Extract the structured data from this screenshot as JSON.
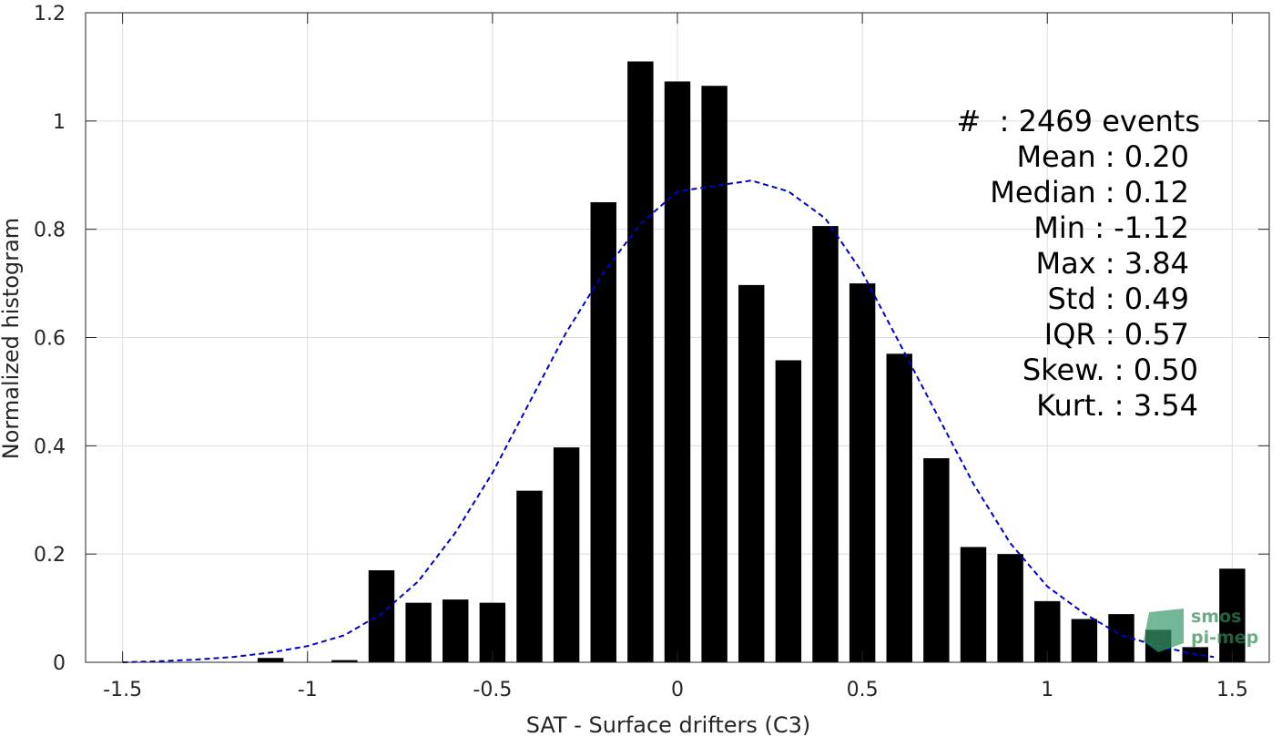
{
  "chart_data": {
    "type": "bar",
    "xlabel": "SAT - Surface drifters (C3)",
    "ylabel": "Normalized histogram",
    "xlim": [
      -1.6,
      1.6
    ],
    "ylim": [
      0,
      1.2
    ],
    "xticks": [
      -1.5,
      -1,
      -0.5,
      0,
      0.5,
      1,
      1.5
    ],
    "xtick_labels": [
      "-1.5",
      "-1",
      "-0.5",
      "0",
      "0.5",
      "1",
      "1.5"
    ],
    "yticks": [
      0,
      0.2,
      0.4,
      0.6,
      0.8,
      1,
      1.2
    ],
    "ytick_labels": [
      "0",
      "0.2",
      "0.4",
      "0.6",
      "0.8",
      "1",
      "1.2"
    ],
    "grid": true,
    "bar_width": 0.07,
    "x": [
      -1.1,
      -0.9,
      -0.8,
      -0.7,
      -0.6,
      -0.5,
      -0.4,
      -0.3,
      -0.2,
      -0.1,
      0.0,
      0.1,
      0.2,
      0.3,
      0.4,
      0.5,
      0.6,
      0.7,
      0.8,
      0.9,
      1.0,
      1.1,
      1.2,
      1.3,
      1.4,
      1.5
    ],
    "values": [
      0.008,
      0.004,
      0.17,
      0.11,
      0.116,
      0.11,
      0.317,
      0.397,
      0.85,
      1.11,
      1.073,
      1.065,
      0.697,
      0.558,
      0.806,
      0.7,
      0.57,
      0.377,
      0.213,
      0.2,
      0.113,
      0.08,
      0.089,
      0.06,
      0.028,
      0.173
    ],
    "bar_color": "#000000",
    "fit_curve": {
      "style": "dashed",
      "color": "#0000cc",
      "x": [
        -1.5,
        -1.4,
        -1.3,
        -1.2,
        -1.1,
        -1.0,
        -0.9,
        -0.8,
        -0.7,
        -0.6,
        -0.5,
        -0.4,
        -0.3,
        -0.2,
        -0.1,
        0.0,
        0.1,
        0.2,
        0.3,
        0.4,
        0.5,
        0.6,
        0.7,
        0.8,
        0.9,
        1.0,
        1.1,
        1.2,
        1.3,
        1.4,
        1.45
      ],
      "y": [
        0.0,
        0.002,
        0.005,
        0.01,
        0.018,
        0.03,
        0.05,
        0.09,
        0.15,
        0.24,
        0.35,
        0.48,
        0.61,
        0.72,
        0.81,
        0.87,
        0.88,
        0.89,
        0.87,
        0.82,
        0.72,
        0.59,
        0.46,
        0.33,
        0.22,
        0.14,
        0.09,
        0.05,
        0.03,
        0.015,
        0.01
      ]
    },
    "annotations": [
      "#  : 2469 events",
      "Mean : 0.20",
      "Median : 0.12",
      "Min : -1.12",
      "Max : 3.84",
      "Std : 0.49",
      "IQR : 0.57",
      "Skew. : 0.50",
      "Kurt. : 3.54"
    ]
  },
  "watermark": {
    "line1": "smos",
    "line2": "pi-mep",
    "color": "#2e8b57"
  }
}
